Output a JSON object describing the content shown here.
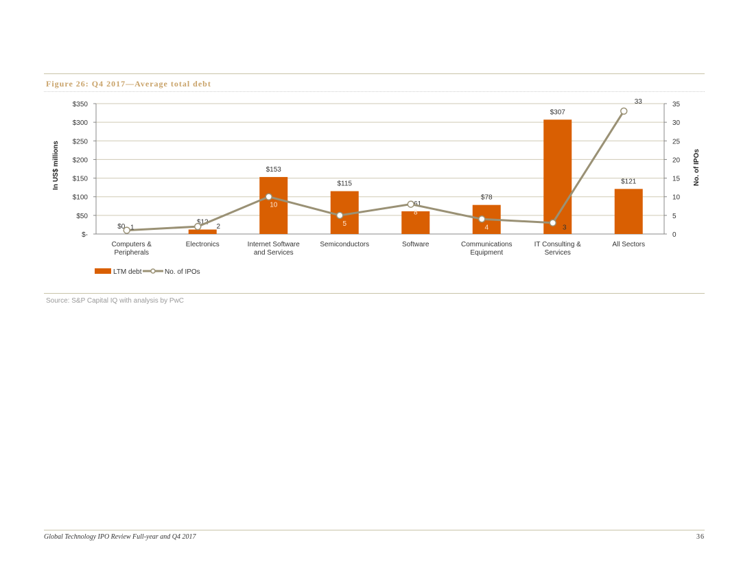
{
  "figure_title": "Figure 26: Q4 2017—Average total debt",
  "source": "Source: S&P Capital IQ with analysis by PwC",
  "footer": {
    "document_title": "Global Technology IPO Review Full-year and Q4 2017",
    "page_number": "36"
  },
  "colors": {
    "bar": "#d95f02",
    "line": "#9a9175",
    "title": "#c9a36a",
    "gridline": "#cfcab4"
  },
  "chart_data": {
    "type": "bar",
    "categories": [
      [
        "Computers &",
        "Peripherals"
      ],
      [
        "Electronics"
      ],
      [
        "Internet Software",
        "and Services"
      ],
      [
        "Semiconductors"
      ],
      [
        "Software"
      ],
      [
        "Communications",
        "Equipment"
      ],
      [
        "IT Consulting &",
        "Services"
      ],
      [
        "All Sectors"
      ]
    ],
    "series": [
      {
        "name": "LTM debt",
        "type": "bar",
        "axis": "left",
        "values": [
          0,
          12,
          153,
          115,
          61,
          78,
          307,
          121
        ],
        "labels": [
          "$0",
          "$12",
          "$153",
          "$115",
          "$61",
          "$78",
          "$307",
          "$121"
        ]
      },
      {
        "name": "No. of IPOs",
        "type": "line",
        "axis": "right",
        "values": [
          1,
          2,
          10,
          5,
          8,
          4,
          3,
          33
        ],
        "labels": [
          "1",
          "2",
          "10",
          "5",
          "8",
          "4",
          "3",
          "33"
        ]
      }
    ],
    "y_left": {
      "label": "In US$ millions",
      "range": [
        0,
        350
      ],
      "ticks": [
        0,
        50,
        100,
        150,
        200,
        250,
        300,
        350
      ],
      "tick_labels": [
        "$-",
        "$50",
        "$100",
        "$150",
        "$200",
        "$250",
        "$300",
        "$350"
      ]
    },
    "y_right": {
      "label": "No. of IPOs",
      "range": [
        0,
        35
      ],
      "ticks": [
        0,
        5,
        10,
        15,
        20,
        25,
        30,
        35
      ],
      "tick_labels": [
        "0",
        "5",
        "10",
        "15",
        "20",
        "25",
        "30",
        "35"
      ]
    },
    "grid": true,
    "legend_position": "bottom-left"
  }
}
